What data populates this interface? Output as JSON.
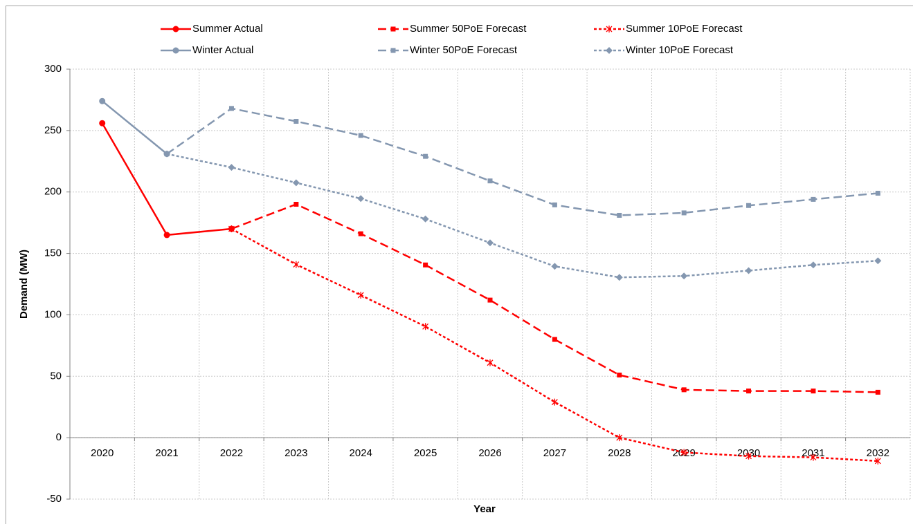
{
  "chart_data": {
    "type": "line",
    "xlabel": "Year",
    "ylabel": "Demand (MW)",
    "categories": [
      "2020",
      "2021",
      "2022",
      "2023",
      "2024",
      "2025",
      "2026",
      "2027",
      "2028",
      "2029",
      "2030",
      "2031",
      "2032"
    ],
    "ylim": [
      -50,
      300
    ],
    "yticks": [
      -50,
      0,
      50,
      100,
      150,
      200,
      250,
      300
    ],
    "grid": true,
    "legend": "top",
    "series": [
      {
        "name": "Summer Actual",
        "color": "#ff0000",
        "dash": "solid",
        "marker": "circle",
        "values": [
          256,
          165,
          170,
          null,
          null,
          null,
          null,
          null,
          null,
          null,
          null,
          null,
          null
        ]
      },
      {
        "name": "Summer 50PoE Forecast",
        "color": "#ff0000",
        "dash": "long",
        "marker": "square",
        "values": [
          null,
          null,
          170,
          190,
          166,
          140.6,
          112,
          80,
          51,
          39,
          38,
          38,
          37
        ]
      },
      {
        "name": "Summer 10PoE Forecast",
        "color": "#ff0000",
        "dash": "short",
        "marker": "asterisk",
        "values": [
          null,
          null,
          170,
          141,
          116,
          90.5,
          61,
          29,
          0,
          -12,
          -15,
          -16,
          -19
        ]
      },
      {
        "name": "Winter Actual",
        "color": "#8497b0",
        "dash": "solid",
        "marker": "circle",
        "values": [
          274,
          231,
          null,
          null,
          null,
          null,
          null,
          null,
          null,
          null,
          null,
          null,
          null
        ]
      },
      {
        "name": "Winter 50PoE Forecast",
        "color": "#8497b0",
        "dash": "long",
        "marker": "square",
        "values": [
          null,
          231,
          268,
          257.5,
          246,
          229,
          209,
          189.5,
          181,
          183,
          189,
          194,
          199
        ]
      },
      {
        "name": "Winter 10PoE Forecast",
        "color": "#8497b0",
        "dash": "short",
        "marker": "diamond",
        "values": [
          null,
          231,
          220,
          207.5,
          194.6,
          178,
          158.6,
          139.5,
          130.5,
          131.6,
          136,
          140.6,
          144
        ]
      }
    ]
  }
}
